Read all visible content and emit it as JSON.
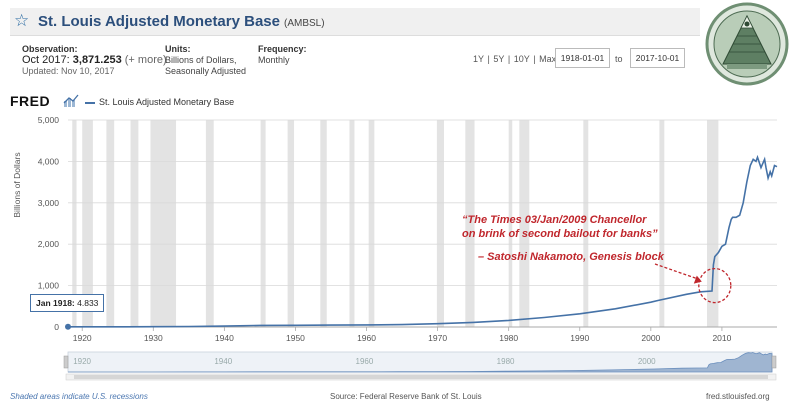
{
  "header": {
    "title": "St. Louis Adjusted Monetary Base",
    "series_id": "(AMBSL)"
  },
  "meta": {
    "observation_label": "Observation:",
    "observation_period": "Oct 2017:",
    "observation_value": "3,871.253",
    "observation_more": "(+ more)",
    "updated": "Updated: Nov 10, 2017",
    "units_label": "Units:",
    "units_line1": "Billions of Dollars,",
    "units_line2": "Seasonally Adjusted",
    "frequency_label": "Frequency:",
    "frequency_value": "Monthly"
  },
  "range_buttons": [
    "1Y",
    "5Y",
    "10Y",
    "Max"
  ],
  "date_from": "1918-01-01",
  "date_to_label": "to",
  "date_to": "2017-10-01",
  "logo": "FRED",
  "legend_label": "St. Louis Adjusted Monetary Base",
  "tooltip": {
    "date": "Jan 1918:",
    "value": "4.833"
  },
  "annotation": {
    "quote_line1": "“The Times 03/Jan/2009 Chancellor",
    "quote_line2": "on brink of second bailout for banks”",
    "attribution": "– Satoshi Nakamoto, Genesis block"
  },
  "footer": {
    "recessions": "Shaded areas indicate U.S. recessions",
    "source": "Source: Federal Reserve Bank of St. Louis",
    "site": "fred.stlouisfed.org"
  },
  "colors": {
    "line": "#4572a7",
    "annotation": "#c0272d",
    "recession": "#e3e3e3",
    "title": "#2c4f7c"
  },
  "chart_data": {
    "type": "line",
    "title": "St. Louis Adjusted Monetary Base",
    "ylabel": "Billions of Dollars",
    "xlim": [
      1918,
      2017.75
    ],
    "ylim": [
      0,
      5000
    ],
    "yticks": [
      0,
      1000,
      2000,
      3000,
      4000,
      5000
    ],
    "yticklabels": [
      "0",
      "1,000",
      "2,000",
      "3,000",
      "4,000",
      "5,000"
    ],
    "xticks": [
      1920,
      1930,
      1940,
      1950,
      1960,
      1970,
      1980,
      1990,
      2000,
      2010
    ],
    "navigator_ticks": [
      1920,
      1940,
      1960,
      1980,
      2000
    ],
    "grid": true,
    "series": [
      {
        "name": "St. Louis Adjusted Monetary Base",
        "x": [
          1918,
          1925,
          1930,
          1935,
          1940,
          1945,
          1950,
          1955,
          1960,
          1965,
          1970,
          1975,
          1980,
          1985,
          1990,
          1995,
          2000,
          2001,
          2005,
          2007,
          2008.6,
          2008.8,
          2009,
          2009.5,
          2010,
          2010.5,
          2011,
          2011.3,
          2011.5,
          2012,
          2012.5,
          2013,
          2013.5,
          2014,
          2014.4,
          2014.8,
          2015,
          2015.5,
          2016,
          2016.2,
          2016.5,
          2016.8,
          2017,
          2017.4,
          2017.75
        ],
        "y": [
          4.833,
          6,
          7,
          13,
          22,
          38,
          42,
          47,
          50,
          58,
          80,
          110,
          160,
          230,
          320,
          440,
          600,
          640,
          790,
          850,
          870,
          1500,
          1700,
          1800,
          1950,
          2000,
          2400,
          2600,
          2650,
          2650,
          2700,
          3000,
          3500,
          3900,
          4050,
          4000,
          4100,
          3850,
          4050,
          3850,
          3600,
          3750,
          3650,
          3900,
          3871.253
        ]
      }
    ],
    "recessions": [
      [
        1918.6,
        1919.2
      ],
      [
        1920,
        1921.5
      ],
      [
        1923.4,
        1924.5
      ],
      [
        1926.8,
        1927.9
      ],
      [
        1929.6,
        1933.2
      ],
      [
        1937.4,
        1938.5
      ],
      [
        1945.1,
        1945.8
      ],
      [
        1948.9,
        1949.8
      ],
      [
        1953.5,
        1954.4
      ],
      [
        1957.6,
        1958.3
      ],
      [
        1960.3,
        1961.1
      ],
      [
        1969.9,
        1970.9
      ],
      [
        1973.9,
        1975.2
      ],
      [
        1980,
        1980.5
      ],
      [
        1981.5,
        1982.9
      ],
      [
        1990.5,
        1991.2
      ],
      [
        2001.2,
        2001.9
      ],
      [
        2007.9,
        2009.5
      ]
    ]
  }
}
